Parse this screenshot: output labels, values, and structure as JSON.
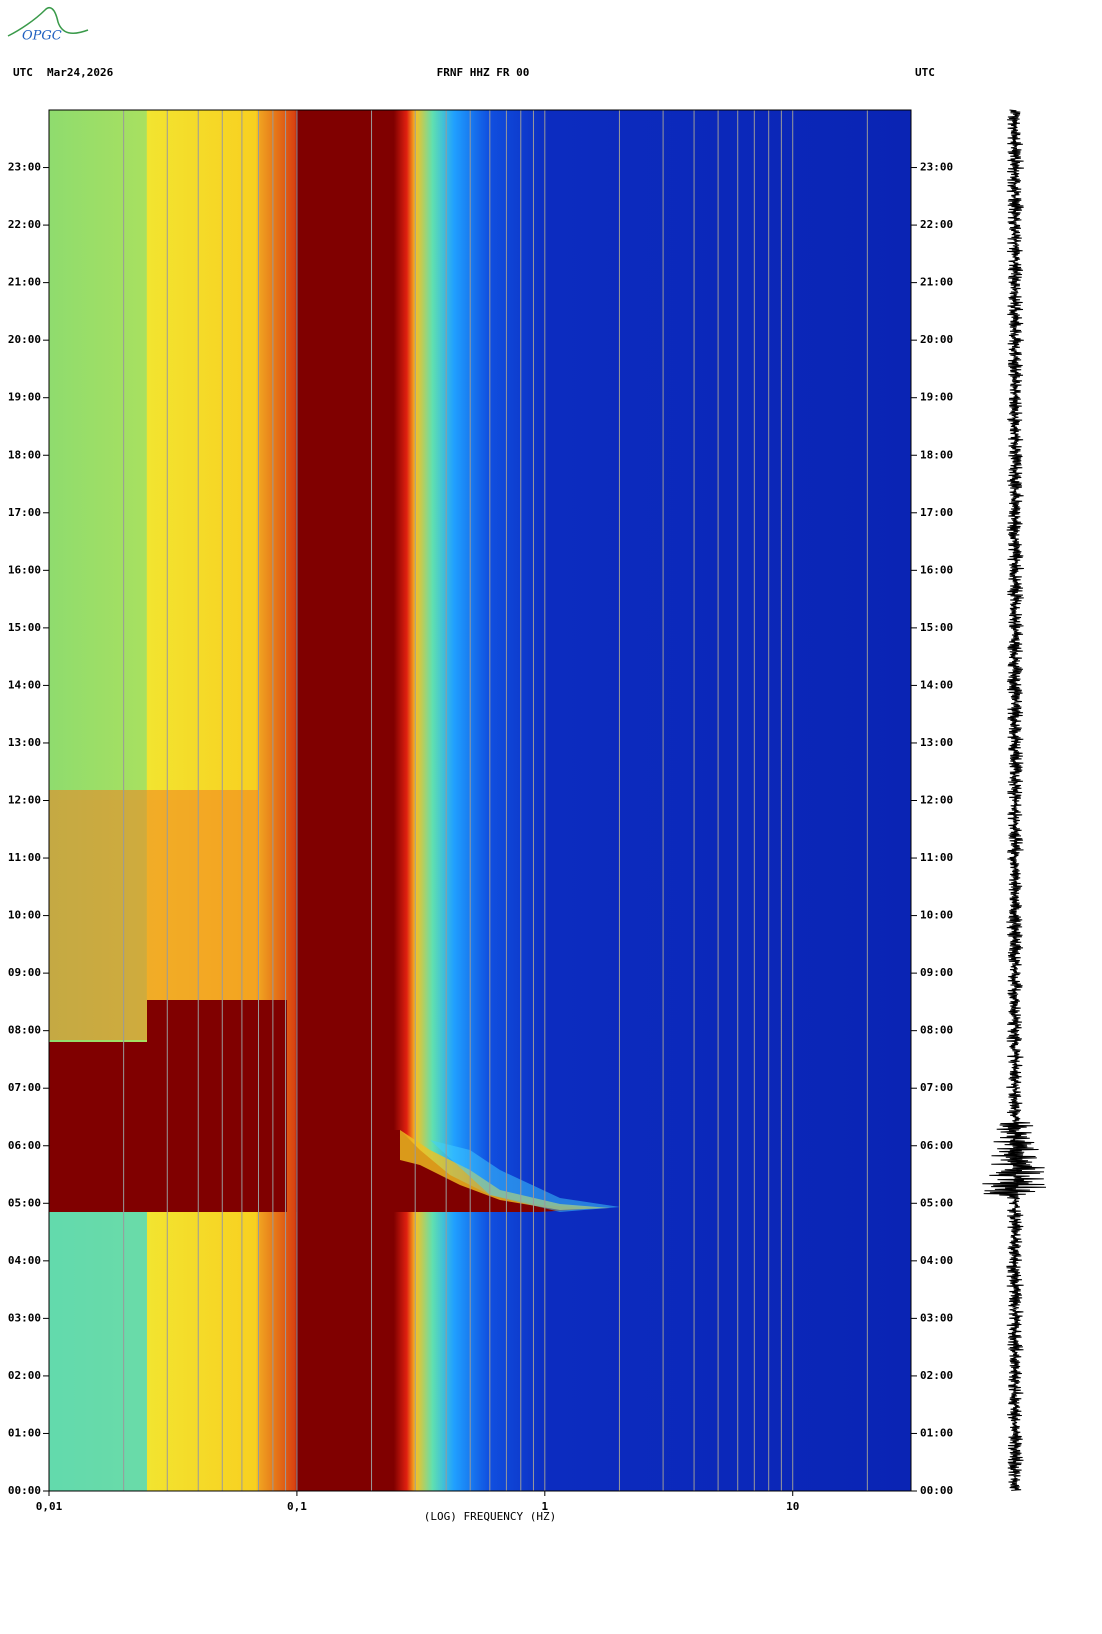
{
  "chart_data": {
    "type": "spectrogram",
    "logo": "OPGC",
    "time_zone_left": "UTC",
    "date": "Mar24,2026",
    "title": "FRNF HHZ FR 00",
    "time_zone_right": "UTC",
    "xlabel": "(LOG) FREQUENCY (HZ)",
    "xscale": "log",
    "xlim": [
      0.01,
      30
    ],
    "xticks": [
      {
        "value": 0.01,
        "label": "0,01"
      },
      {
        "value": 0.1,
        "label": "0,1"
      },
      1,
      10
    ],
    "xgrid": [
      0.02,
      0.03,
      0.04,
      0.05,
      0.06,
      0.07,
      0.08,
      0.09,
      0.1,
      0.2,
      0.3,
      0.4,
      0.5,
      0.6,
      0.7,
      0.8,
      0.9,
      1,
      2,
      3,
      4,
      5,
      6,
      7,
      8,
      9,
      10,
      20
    ],
    "grid_color": "#9a9a9a",
    "ylim": [
      0,
      24
    ],
    "yticks": [
      {
        "value": 0,
        "label": "00:00"
      },
      {
        "value": 1,
        "label": "01:00"
      },
      {
        "value": 2,
        "label": "02:00"
      },
      {
        "value": 3,
        "label": "03:00"
      },
      {
        "value": 4,
        "label": "04:00"
      },
      {
        "value": 5,
        "label": "05:00"
      },
      {
        "value": 6,
        "label": "06:00"
      },
      {
        "value": 7,
        "label": "07:00"
      },
      {
        "value": 8,
        "label": "08:00"
      },
      {
        "value": 9,
        "label": "09:00"
      },
      {
        "value": 10,
        "label": "10:00"
      },
      {
        "value": 11,
        "label": "11:00"
      },
      {
        "value": 12,
        "label": "12:00"
      },
      {
        "value": 13,
        "label": "13:00"
      },
      {
        "value": 14,
        "label": "14:00"
      },
      {
        "value": 15,
        "label": "15:00"
      },
      {
        "value": 16,
        "label": "16:00"
      },
      {
        "value": 17,
        "label": "17:00"
      },
      {
        "value": 18,
        "label": "18:00"
      },
      {
        "value": 19,
        "label": "19:00"
      },
      {
        "value": 20,
        "label": "20:00"
      },
      {
        "value": 21,
        "label": "21:00"
      },
      {
        "value": 22,
        "label": "22:00"
      },
      {
        "value": 23,
        "label": "23:00"
      }
    ]
  }
}
